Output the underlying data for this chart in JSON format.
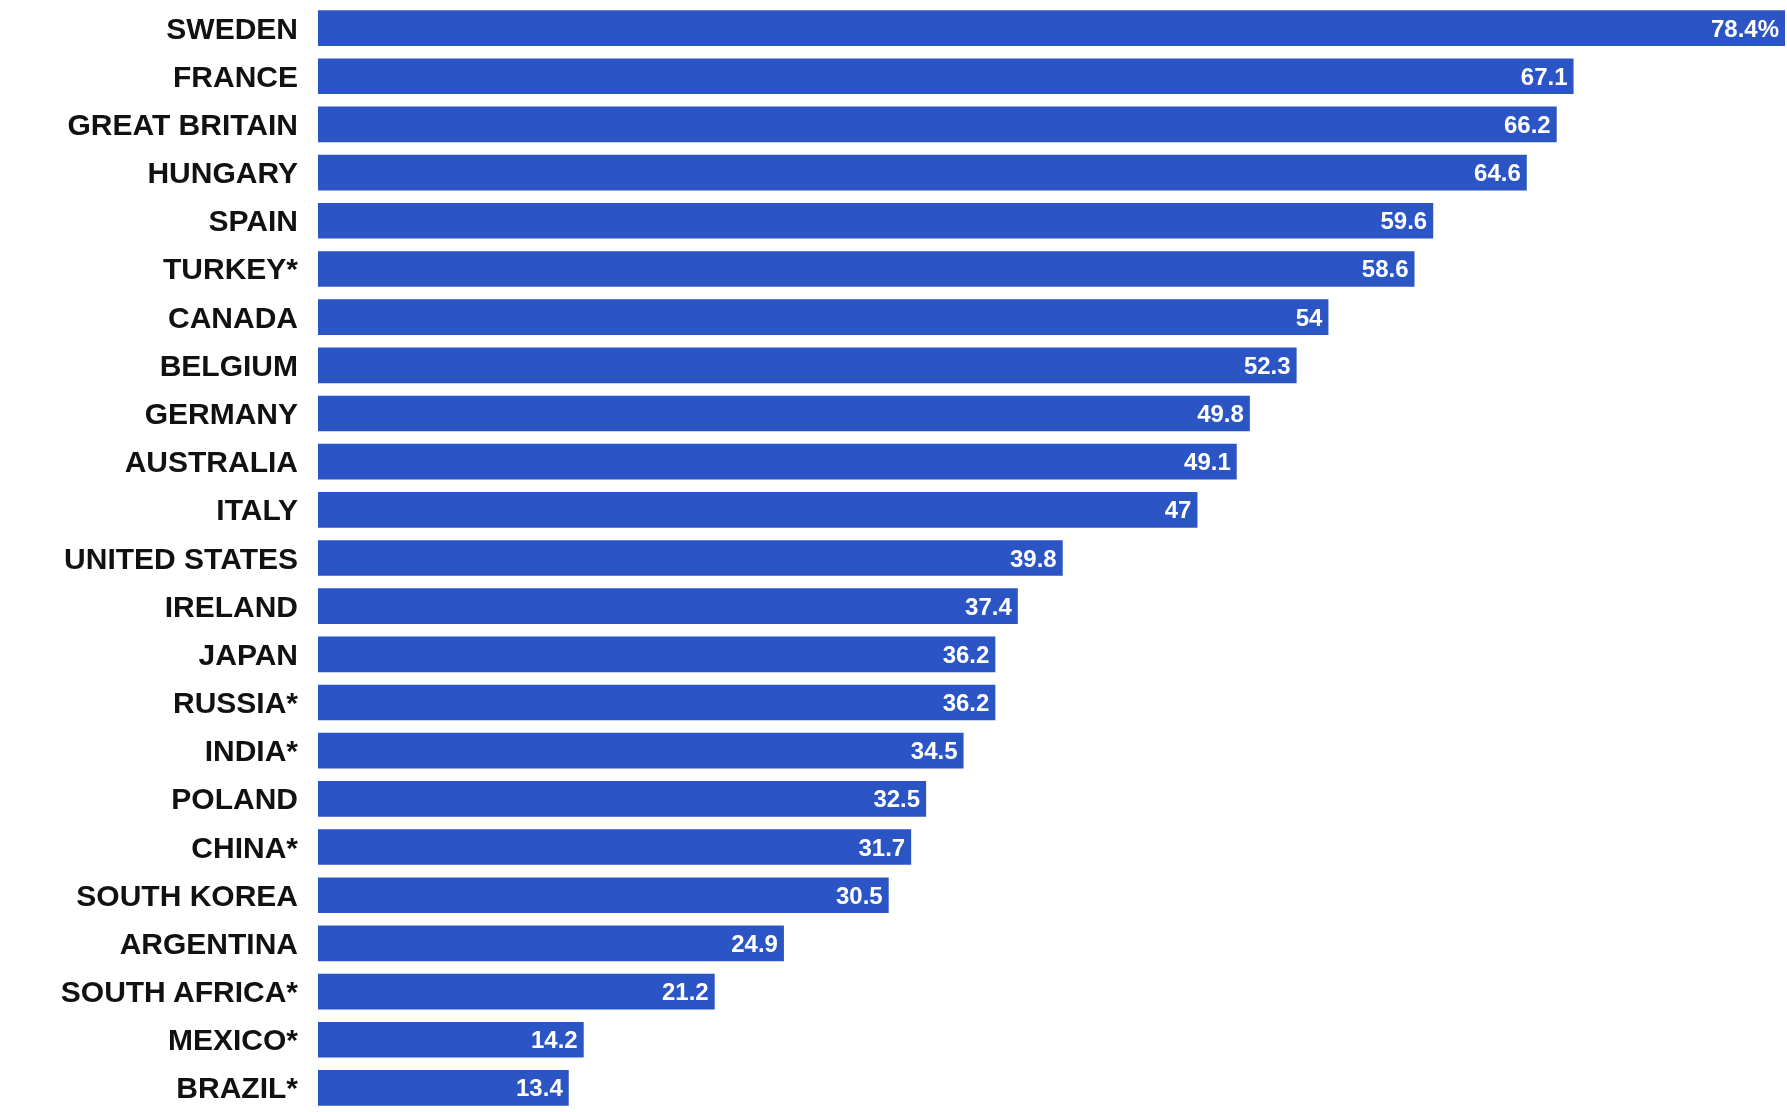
{
  "chart_data": {
    "type": "bar",
    "orientation": "horizontal",
    "categories": [
      "SWEDEN",
      "FRANCE",
      "GREAT BRITAIN",
      "HUNGARY",
      "SPAIN",
      "TURKEY*",
      "CANADA",
      "BELGIUM",
      "GERMANY",
      "AUSTRALIA",
      "ITALY",
      "UNITED STATES",
      "IRELAND",
      "JAPAN",
      "RUSSIA*",
      "INDIA*",
      "POLAND",
      "CHINA*",
      "SOUTH KOREA",
      "ARGENTINA",
      "SOUTH AFRICA*",
      "MEXICO*",
      "BRAZIL*"
    ],
    "values": [
      78.4,
      67.1,
      66.2,
      64.6,
      59.6,
      58.6,
      54,
      52.3,
      49.8,
      49.1,
      47,
      39.8,
      37.4,
      36.2,
      36.2,
      34.5,
      32.5,
      31.7,
      30.5,
      24.9,
      21.2,
      14.2,
      13.4
    ],
    "value_labels": [
      "78.4%",
      "67.1",
      "66.2",
      "64.6",
      "59.6",
      "58.6",
      "54",
      "52.3",
      "49.8",
      "49.1",
      "47",
      "39.8",
      "37.4",
      "36.2",
      "36.2",
      "34.5",
      "32.5",
      "31.7",
      "30.5",
      "24.9",
      "21.2",
      "14.2",
      "13.4"
    ],
    "color": "#2b55c5"
  }
}
